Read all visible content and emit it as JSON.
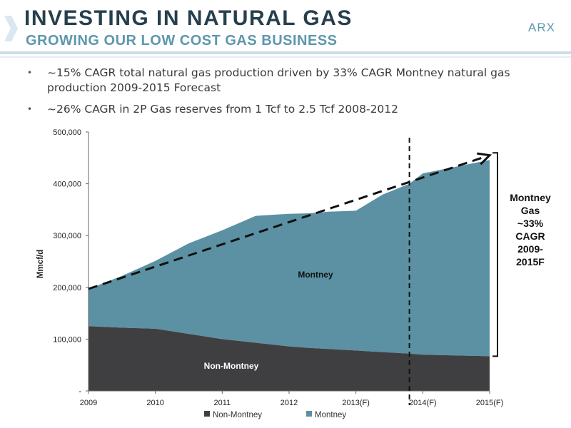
{
  "header": {
    "title": "INVESTING IN NATURAL GAS",
    "subtitle": "GROWING OUR LOW COST GAS BUSINESS",
    "brand": "ARX"
  },
  "bullets": [
    "~15% CAGR total natural gas production driven by 33% CAGR Montney natural gas production 2009-2015 Forecast",
    "~26% CAGR in 2P Gas reserves from 1 Tcf to 2.5 Tcf 2008-2012"
  ],
  "colors": {
    "title": "#263f4c",
    "accent": "#5e97ad",
    "non_montney": "#3f3f41",
    "montney": "#5b91a3"
  },
  "chart_data": {
    "type": "area",
    "stacked": true,
    "categories": [
      "2009",
      "2010",
      "2011",
      "2012",
      "2013(F)",
      "2014(F)",
      "2015(F)"
    ],
    "x": [
      2009,
      2009.5,
      2010,
      2010.5,
      2011,
      2011.5,
      2012,
      2012.3,
      2012.6,
      2013,
      2013.4,
      2013.8,
      2014,
      2015
    ],
    "series": [
      {
        "name": "Non-Montney",
        "values": [
          125000,
          122000,
          120000,
          110000,
          100000,
          93000,
          86000,
          83000,
          81000,
          78000,
          75000,
          72000,
          70000,
          67000
        ]
      },
      {
        "name": "Montney",
        "values": [
          72000,
          100000,
          131000,
          175000,
          210000,
          245000,
          256000,
          260000,
          265000,
          270000,
          304000,
          328000,
          350000,
          379000
        ]
      }
    ],
    "totals_approx": [
      197000,
      222000,
      251000,
      285000,
      310000,
      338000,
      342000,
      343000,
      346000,
      348000,
      379000,
      400000,
      420000,
      446000
    ],
    "ylabel": "Mmcf/d",
    "ylim": [
      0,
      500000
    ],
    "yticks": [
      0,
      100000,
      200000,
      300000,
      400000,
      500000
    ],
    "ytick_labels": [
      "-",
      "100,000",
      "200,000",
      "300,000",
      "400,000",
      "500,000"
    ],
    "grid": false,
    "trend_line": {
      "x": [
        2009,
        2015
      ],
      "y": [
        197000,
        455000
      ],
      "style": "dashed"
    },
    "forecast_divider_x": 2013.8,
    "area_labels": {
      "non_montney": "Non-Montney",
      "montney": "Montney"
    },
    "legend": {
      "position": "bottom",
      "entries": [
        "Non-Montney",
        "Montney"
      ]
    },
    "annotation": [
      "Montney",
      "Gas",
      "~33%",
      "CAGR",
      "2009-",
      "2015F"
    ]
  }
}
